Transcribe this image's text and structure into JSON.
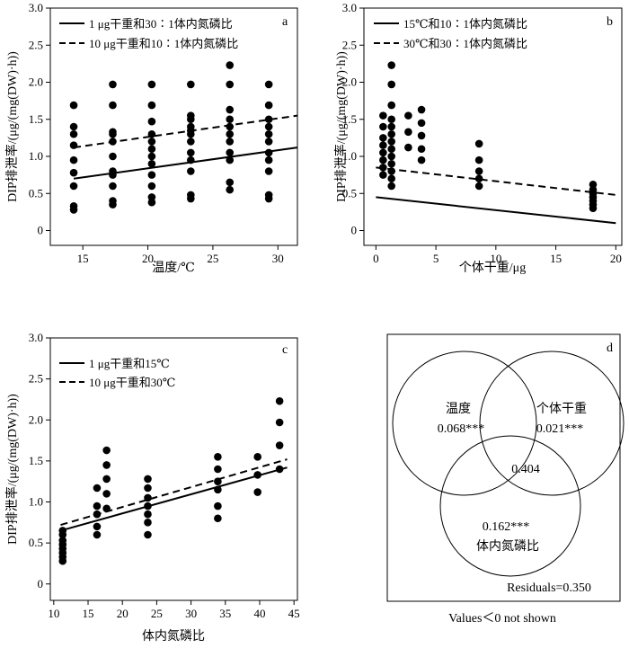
{
  "chart_data": [
    {
      "panel": "a",
      "type": "scatter",
      "xlabel": "温度/℃",
      "ylabel": "DIP排泄率/(μg/(mg(DW)·h))",
      "xlim": [
        12.5,
        31.5
      ],
      "ylim": [
        -0.2,
        3.0
      ],
      "xticks": [
        15,
        20,
        25,
        30
      ],
      "yticks": [
        0,
        0.5,
        1.0,
        1.5,
        2.0,
        2.5,
        3.0
      ],
      "legend": "top-left",
      "points": [
        [
          14.3,
          0.28
        ],
        [
          14.3,
          0.33
        ],
        [
          14.3,
          0.6
        ],
        [
          14.3,
          0.78
        ],
        [
          14.3,
          0.95
        ],
        [
          14.3,
          1.15
        ],
        [
          14.3,
          1.3
        ],
        [
          14.3,
          1.4
        ],
        [
          14.3,
          1.69
        ],
        [
          17.3,
          0.35
        ],
        [
          17.3,
          0.4
        ],
        [
          17.3,
          0.6
        ],
        [
          17.3,
          0.75
        ],
        [
          17.3,
          0.8
        ],
        [
          17.3,
          1.0
        ],
        [
          17.3,
          1.2
        ],
        [
          17.3,
          1.3
        ],
        [
          17.3,
          1.33
        ],
        [
          17.3,
          1.69
        ],
        [
          17.3,
          1.97
        ],
        [
          20.3,
          0.38
        ],
        [
          20.3,
          0.45
        ],
        [
          20.3,
          0.6
        ],
        [
          20.3,
          0.75
        ],
        [
          20.3,
          0.9
        ],
        [
          20.3,
          1.0
        ],
        [
          20.3,
          1.1
        ],
        [
          20.3,
          1.2
        ],
        [
          20.3,
          1.3
        ],
        [
          20.3,
          1.47
        ],
        [
          20.3,
          1.69
        ],
        [
          20.3,
          1.97
        ],
        [
          23.3,
          0.43
        ],
        [
          23.3,
          0.48
        ],
        [
          23.3,
          0.8
        ],
        [
          23.3,
          0.95
        ],
        [
          23.3,
          1.05
        ],
        [
          23.3,
          1.2
        ],
        [
          23.3,
          1.3
        ],
        [
          23.3,
          1.35
        ],
        [
          23.3,
          1.4
        ],
        [
          23.3,
          1.5
        ],
        [
          23.3,
          1.55
        ],
        [
          23.3,
          1.97
        ],
        [
          26.3,
          0.55
        ],
        [
          26.3,
          0.65
        ],
        [
          26.3,
          0.95
        ],
        [
          26.3,
          1.05
        ],
        [
          26.3,
          1.2
        ],
        [
          26.3,
          1.3
        ],
        [
          26.3,
          1.4
        ],
        [
          26.3,
          1.5
        ],
        [
          26.3,
          1.63
        ],
        [
          26.3,
          1.97
        ],
        [
          26.3,
          2.23
        ],
        [
          29.3,
          0.43
        ],
        [
          29.3,
          0.48
        ],
        [
          29.3,
          0.8
        ],
        [
          29.3,
          0.95
        ],
        [
          29.3,
          1.05
        ],
        [
          29.3,
          1.2
        ],
        [
          29.3,
          1.3
        ],
        [
          29.3,
          1.4
        ],
        [
          29.3,
          1.5
        ],
        [
          29.3,
          1.69
        ],
        [
          29.3,
          1.97
        ]
      ],
      "series": [
        {
          "name": "1 μg干重和30∶1体内氮磷比",
          "style": "solid",
          "x": [
            14.3,
            31.5
          ],
          "y": [
            0.7,
            1.12
          ]
        },
        {
          "name": "10 μg干重和10∶1体内氮磷比",
          "style": "dashed",
          "x": [
            14.3,
            31.5
          ],
          "y": [
            1.12,
            1.55
          ]
        }
      ]
    },
    {
      "panel": "b",
      "type": "scatter",
      "xlabel": "个体干重/μg",
      "ylabel": "DIP排泄率/(μg/(mg(DW)·h))",
      "xlim": [
        -1,
        20.5
      ],
      "ylim": [
        -0.2,
        3.0
      ],
      "xticks": [
        0,
        5,
        10,
        15,
        20
      ],
      "yticks": [
        0,
        0.5,
        1.0,
        1.5,
        2.0,
        2.5,
        3.0
      ],
      "legend": "top-left",
      "points": [
        [
          0.6,
          0.75
        ],
        [
          0.6,
          0.85
        ],
        [
          0.6,
          0.95
        ],
        [
          0.6,
          1.05
        ],
        [
          0.6,
          1.15
        ],
        [
          0.6,
          1.25
        ],
        [
          0.6,
          1.4
        ],
        [
          0.6,
          1.55
        ],
        [
          1.3,
          0.6
        ],
        [
          1.3,
          0.7
        ],
        [
          1.3,
          0.8
        ],
        [
          1.3,
          0.9
        ],
        [
          1.3,
          1.0
        ],
        [
          1.3,
          1.1
        ],
        [
          1.3,
          1.2
        ],
        [
          1.3,
          1.3
        ],
        [
          1.3,
          1.4
        ],
        [
          1.3,
          1.5
        ],
        [
          1.3,
          1.69
        ],
        [
          1.3,
          1.97
        ],
        [
          1.3,
          2.23
        ],
        [
          2.7,
          1.12
        ],
        [
          2.7,
          1.33
        ],
        [
          2.7,
          1.55
        ],
        [
          3.8,
          0.95
        ],
        [
          3.8,
          1.1
        ],
        [
          3.8,
          1.28
        ],
        [
          3.8,
          1.45
        ],
        [
          3.8,
          1.63
        ],
        [
          8.6,
          0.6
        ],
        [
          8.6,
          0.7
        ],
        [
          8.6,
          0.8
        ],
        [
          8.6,
          0.95
        ],
        [
          8.6,
          1.17
        ],
        [
          18.1,
          0.3
        ],
        [
          18.1,
          0.35
        ],
        [
          18.1,
          0.4
        ],
        [
          18.1,
          0.45
        ],
        [
          18.1,
          0.5
        ],
        [
          18.1,
          0.55
        ],
        [
          18.1,
          0.62
        ]
      ],
      "series": [
        {
          "name": "15℃和10∶1体内氮磷比",
          "style": "solid",
          "x": [
            0,
            20
          ],
          "y": [
            0.45,
            0.1
          ]
        },
        {
          "name": "30℃和30∶1体内氮磷比",
          "style": "dashed",
          "x": [
            0,
            20
          ],
          "y": [
            0.85,
            0.48
          ]
        }
      ]
    },
    {
      "panel": "c",
      "type": "scatter",
      "xlabel": "体内氮磷比",
      "ylabel": "DIP排泄率/(μg/(mg(DW)·h))",
      "xlim": [
        9.5,
        45.5
      ],
      "ylim": [
        -0.2,
        3.0
      ],
      "xticks": [
        10,
        15,
        20,
        25,
        30,
        35,
        40,
        45
      ],
      "yticks": [
        0,
        0.5,
        1.0,
        1.5,
        2.0,
        2.5,
        3.0
      ],
      "legend": "top-left",
      "points": [
        [
          11.3,
          0.28
        ],
        [
          11.3,
          0.33
        ],
        [
          11.3,
          0.38
        ],
        [
          11.3,
          0.43
        ],
        [
          11.3,
          0.48
        ],
        [
          11.3,
          0.53
        ],
        [
          11.3,
          0.6
        ],
        [
          11.3,
          0.65
        ],
        [
          16.3,
          0.6
        ],
        [
          16.3,
          0.7
        ],
        [
          16.3,
          0.85
        ],
        [
          16.3,
          0.95
        ],
        [
          16.3,
          1.17
        ],
        [
          17.7,
          0.92
        ],
        [
          17.7,
          1.1
        ],
        [
          17.7,
          1.28
        ],
        [
          17.7,
          1.45
        ],
        [
          17.7,
          1.63
        ],
        [
          23.7,
          0.6
        ],
        [
          23.7,
          0.75
        ],
        [
          23.7,
          0.85
        ],
        [
          23.7,
          0.95
        ],
        [
          23.7,
          1.05
        ],
        [
          23.7,
          1.17
        ],
        [
          23.7,
          1.28
        ],
        [
          33.9,
          0.8
        ],
        [
          33.9,
          0.95
        ],
        [
          33.9,
          1.15
        ],
        [
          33.9,
          1.25
        ],
        [
          33.9,
          1.4
        ],
        [
          33.9,
          1.55
        ],
        [
          39.7,
          1.12
        ],
        [
          39.7,
          1.33
        ],
        [
          39.7,
          1.55
        ],
        [
          42.9,
          1.4
        ],
        [
          42.9,
          1.69
        ],
        [
          42.9,
          1.97
        ],
        [
          42.9,
          2.23
        ]
      ],
      "series": [
        {
          "name": "1 μg干重和15℃",
          "style": "solid",
          "x": [
            11,
            44
          ],
          "y": [
            0.65,
            1.42
          ]
        },
        {
          "name": "10 μg干重和30℃",
          "style": "dashed",
          "x": [
            11,
            44
          ],
          "y": [
            0.72,
            1.52
          ]
        }
      ]
    }
  ],
  "venn": {
    "panel": "d",
    "temp_label": "温度",
    "temp_value": "0.068***",
    "weight_label": "个体干重",
    "weight_value": "0.021***",
    "np_value": "0.162***",
    "np_label": "体内氮磷比",
    "overlap_value": "0.404",
    "residuals": "Residuals=0.350"
  },
  "footnote": "Values＜0 not shown",
  "colors": {
    "ink": "#000000",
    "background": "#ffffff"
  }
}
